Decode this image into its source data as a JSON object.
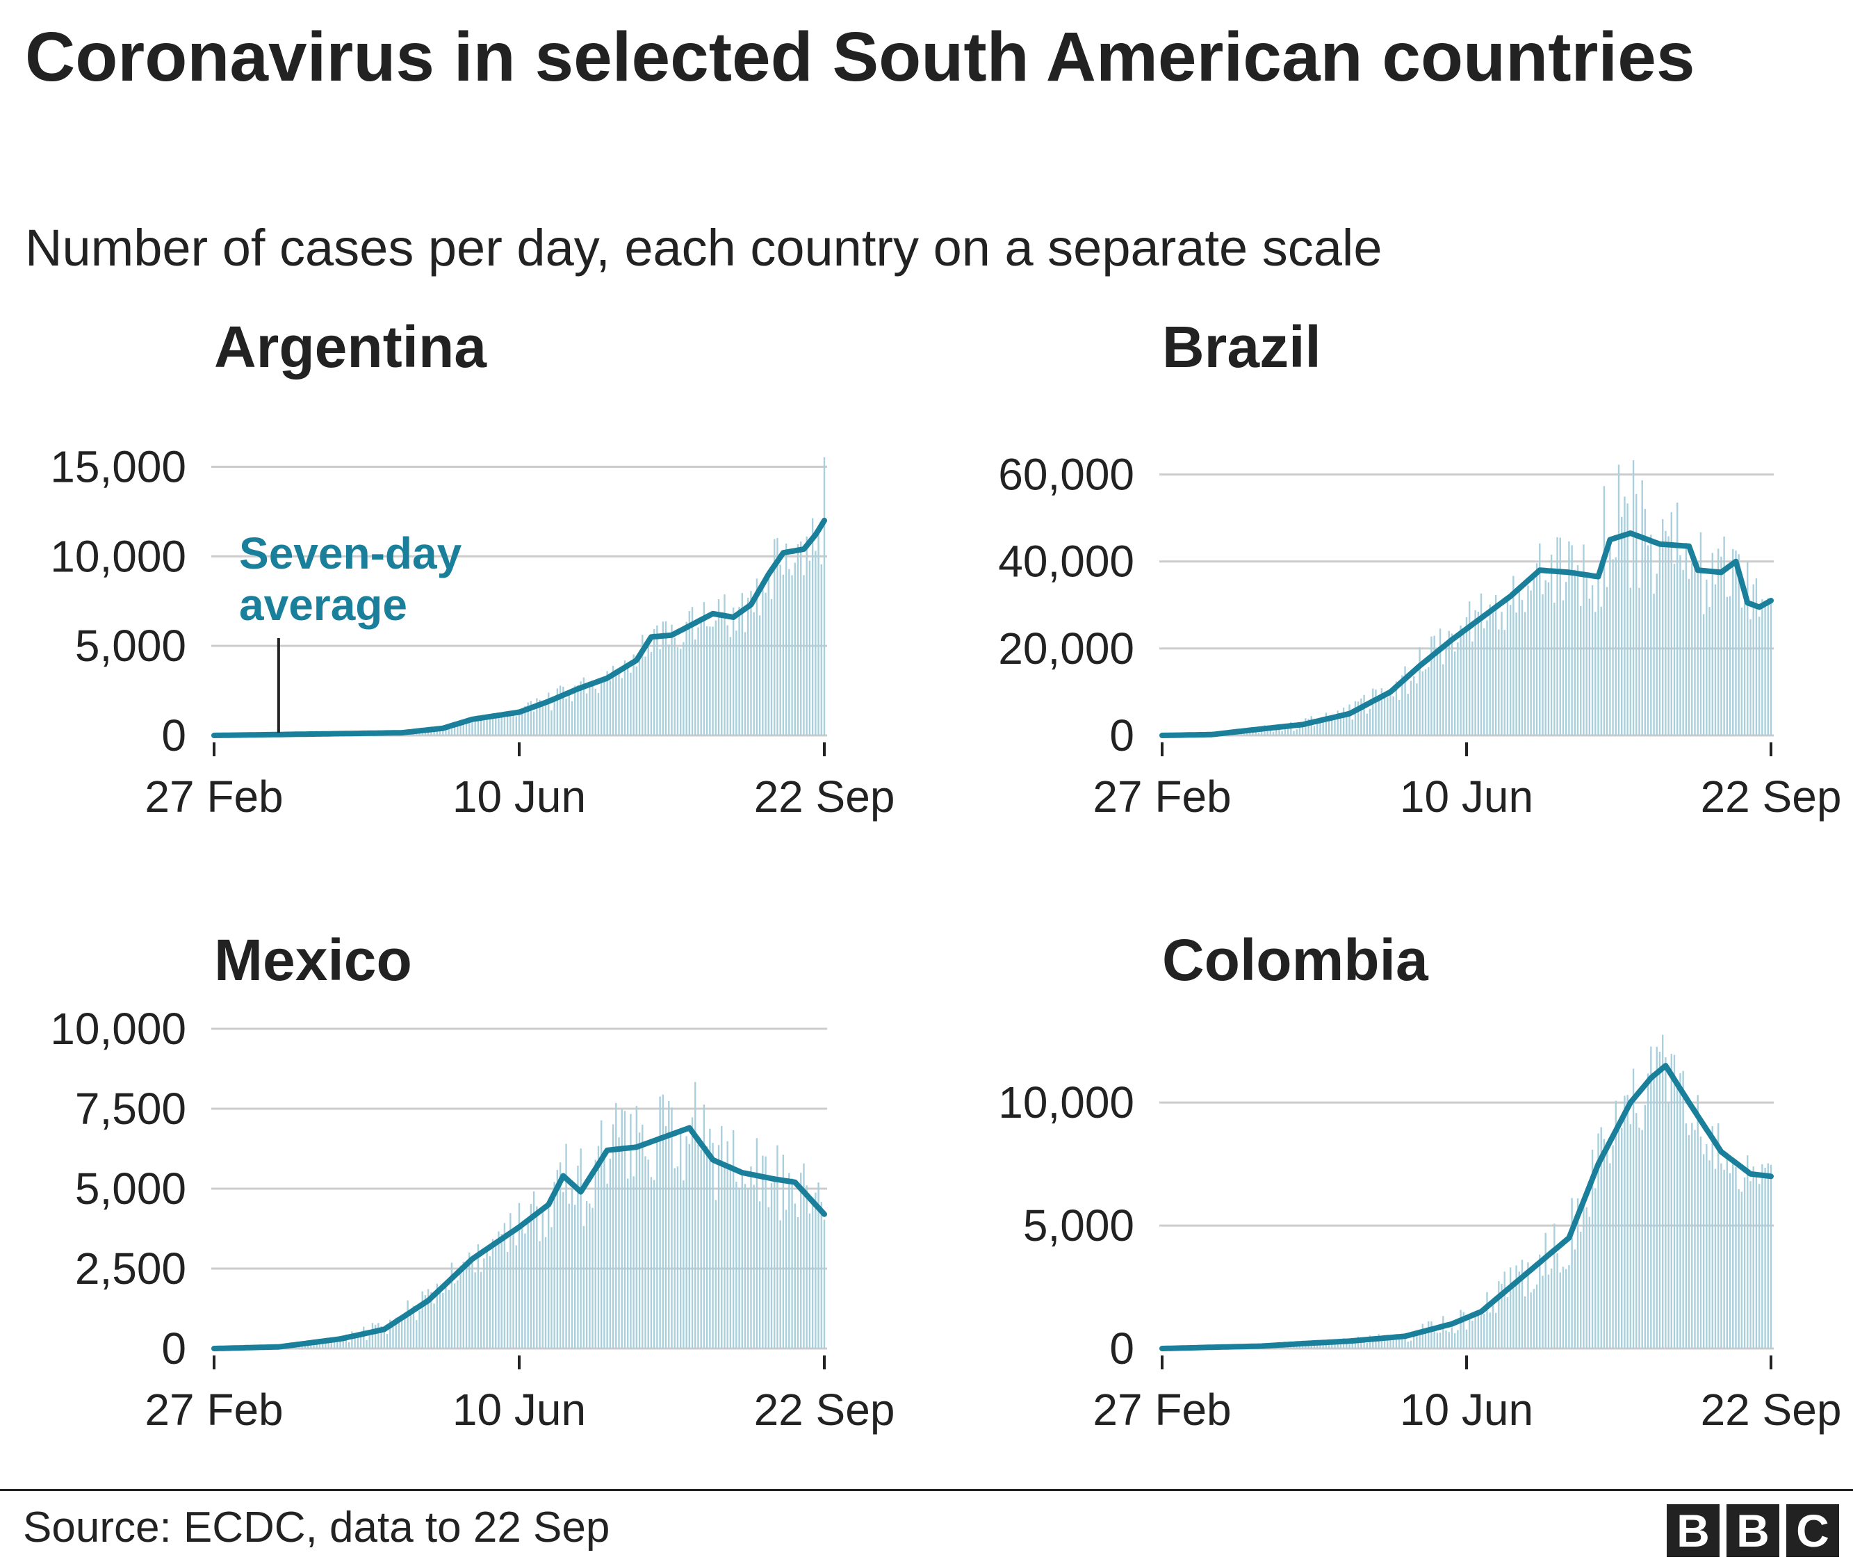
{
  "title": "Coronavirus in selected South American countries",
  "subtitle": "Number of cases per day, each country on a separate scale",
  "source": "Source: ECDC, data to 22 Sep",
  "logo": [
    "B",
    "B",
    "C"
  ],
  "colors": {
    "line": "#1a7f9b",
    "bars": "#a9cfdc",
    "grid": "#cccccc",
    "text": "#222222"
  },
  "chart_data": [
    {
      "type": "bar+line",
      "title": "Argentina",
      "x_range": [
        "27 Feb",
        "22 Sep"
      ],
      "x_ticks": [
        "27 Feb",
        "10 Jun",
        "22 Sep"
      ],
      "ylim": [
        0,
        17000
      ],
      "yticks": [
        0,
        5000,
        10000,
        15000
      ],
      "ytick_labels": [
        "0",
        "5,000",
        "10,000",
        "15,000"
      ],
      "annotation": {
        "text": [
          "Seven-day",
          "average"
        ],
        "date": "20 Mar",
        "y": 0
      },
      "series": [
        {
          "name": "Seven-day average",
          "kind": "line",
          "points": [
            [
              "27 Feb",
              0
            ],
            [
              "20 Mar",
              50
            ],
            [
              "10 Apr",
              100
            ],
            [
              "1 May",
              150
            ],
            [
              "15 May",
              400
            ],
            [
              "25 May",
              900
            ],
            [
              "10 Jun",
              1300
            ],
            [
              "20 Jun",
              1900
            ],
            [
              "30 Jun",
              2600
            ],
            [
              "10 Jul",
              3200
            ],
            [
              "20 Jul",
              4200
            ],
            [
              "25 Jul",
              5500
            ],
            [
              "1 Aug",
              5600
            ],
            [
              "8 Aug",
              6200
            ],
            [
              "15 Aug",
              6800
            ],
            [
              "22 Aug",
              6600
            ],
            [
              "28 Aug",
              7300
            ],
            [
              "3 Sep",
              9000
            ],
            [
              "8 Sep",
              10200
            ],
            [
              "15 Sep",
              10400
            ],
            [
              "19 Sep",
              11200
            ],
            [
              "22 Sep",
              12000
            ]
          ]
        },
        {
          "name": "Daily cases",
          "kind": "bar",
          "points": [
            [
              "27 Feb",
              0
            ],
            [
              "20 Mar",
              100
            ],
            [
              "10 Apr",
              150
            ],
            [
              "1 May",
              200
            ],
            [
              "15 May",
              600
            ],
            [
              "25 May",
              1100
            ],
            [
              "10 Jun",
              1600
            ],
            [
              "20 Jun",
              2600
            ],
            [
              "30 Jun",
              3300
            ],
            [
              "10 Jul",
              4000
            ],
            [
              "20 Jul",
              5300
            ],
            [
              "25 Jul",
              6500
            ],
            [
              "1 Aug",
              6900
            ],
            [
              "8 Aug",
              7300
            ],
            [
              "15 Aug",
              8000
            ],
            [
              "22 Aug",
              8200
            ],
            [
              "28 Aug",
              9000
            ],
            [
              "3 Sep",
              11000
            ],
            [
              "8 Sep",
              11800
            ],
            [
              "15 Sep",
              12300
            ],
            [
              "19 Sep",
              12800
            ],
            [
              "22 Sep",
              17200
            ]
          ]
        }
      ]
    },
    {
      "type": "bar+line",
      "title": "Brazil",
      "x_range": [
        "27 Feb",
        "22 Sep"
      ],
      "x_ticks": [
        "27 Feb",
        "10 Jun",
        "22 Sep"
      ],
      "ylim": [
        0,
        70000
      ],
      "yticks": [
        0,
        20000,
        40000,
        60000
      ],
      "ytick_labels": [
        "0",
        "20,000",
        "40,000",
        "60,000"
      ],
      "series": [
        {
          "name": "Seven-day average",
          "kind": "line",
          "points": [
            [
              "27 Feb",
              0
            ],
            [
              "15 Mar",
              200
            ],
            [
              "1 Apr",
              1500
            ],
            [
              "15 Apr",
              2500
            ],
            [
              "1 May",
              5000
            ],
            [
              "15 May",
              10000
            ],
            [
              "25 May",
              16000
            ],
            [
              "5 Jun",
              22000
            ],
            [
              "15 Jun",
              27000
            ],
            [
              "25 Jun",
              32000
            ],
            [
              "5 Jul",
              38000
            ],
            [
              "15 Jul",
              37500
            ],
            [
              "25 Jul",
              36500
            ],
            [
              "29 Jul",
              45000
            ],
            [
              "5 Aug",
              46500
            ],
            [
              "15 Aug",
              44000
            ],
            [
              "25 Aug",
              43500
            ],
            [
              "28 Aug",
              38000
            ],
            [
              "5 Sep",
              37500
            ],
            [
              "10 Sep",
              40000
            ],
            [
              "14 Sep",
              30500
            ],
            [
              "18 Sep",
              29500
            ],
            [
              "22 Sep",
              31000
            ]
          ]
        },
        {
          "name": "Daily cases",
          "kind": "bar",
          "points": [
            [
              "27 Feb",
              0
            ],
            [
              "15 Mar",
              300
            ],
            [
              "1 Apr",
              2500
            ],
            [
              "15 Apr",
              4000
            ],
            [
              "1 May",
              7500
            ],
            [
              "15 May",
              14000
            ],
            [
              "25 May",
              21000
            ],
            [
              "5 Jun",
              28000
            ],
            [
              "15 Jun",
              34000
            ],
            [
              "25 Jun",
              40000
            ],
            [
              "5 Jul",
              46000
            ],
            [
              "15 Jul",
              48000
            ],
            [
              "25 Jul",
              52000
            ],
            [
              "29 Jul",
              68000
            ],
            [
              "5 Aug",
              69000
            ],
            [
              "15 Aug",
              60000
            ],
            [
              "25 Aug",
              54000
            ],
            [
              "28 Aug",
              50000
            ],
            [
              "5 Sep",
              46000
            ],
            [
              "10 Sep",
              50000
            ],
            [
              "14 Sep",
              42000
            ],
            [
              "18 Sep",
              36000
            ],
            [
              "22 Sep",
              34000
            ]
          ]
        }
      ]
    },
    {
      "type": "bar+line",
      "title": "Mexico",
      "x_range": [
        "27 Feb",
        "22 Sep"
      ],
      "x_ticks": [
        "27 Feb",
        "10 Jun",
        "22 Sep"
      ],
      "ylim": [
        0,
        10000
      ],
      "yticks": [
        0,
        2500,
        5000,
        7500,
        10000
      ],
      "ytick_labels": [
        "0",
        "2,500",
        "5,000",
        "7,500",
        "10,000"
      ],
      "series": [
        {
          "name": "Seven-day average",
          "kind": "line",
          "points": [
            [
              "27 Feb",
              0
            ],
            [
              "20 Mar",
              50
            ],
            [
              "10 Apr",
              300
            ],
            [
              "25 Apr",
              600
            ],
            [
              "10 May",
              1500
            ],
            [
              "25 May",
              2800
            ],
            [
              "10 Jun",
              3800
            ],
            [
              "20 Jun",
              4500
            ],
            [
              "25 Jun",
              5400
            ],
            [
              "1 Jul",
              4900
            ],
            [
              "10 Jul",
              6200
            ],
            [
              "20 Jul",
              6300
            ],
            [
              "1 Aug",
              6700
            ],
            [
              "7 Aug",
              6900
            ],
            [
              "15 Aug",
              5900
            ],
            [
              "25 Aug",
              5500
            ],
            [
              "5 Sep",
              5300
            ],
            [
              "12 Sep",
              5200
            ],
            [
              "22 Sep",
              4200
            ]
          ]
        },
        {
          "name": "Daily cases",
          "kind": "bar",
          "points": [
            [
              "27 Feb",
              0
            ],
            [
              "20 Mar",
              80
            ],
            [
              "10 Apr",
              450
            ],
            [
              "25 Apr",
              1000
            ],
            [
              "10 May",
              2100
            ],
            [
              "25 May",
              3400
            ],
            [
              "10 Jun",
              4700
            ],
            [
              "20 Jun",
              5700
            ],
            [
              "25 Jun",
              6500
            ],
            [
              "1 Jul",
              6900
            ],
            [
              "10 Jul",
              7800
            ],
            [
              "20 Jul",
              8000
            ],
            [
              "1 Aug",
              8300
            ],
            [
              "7 Aug",
              9500
            ],
            [
              "15 Aug",
              7300
            ],
            [
              "25 Aug",
              6900
            ],
            [
              "5 Sep",
              6800
            ],
            [
              "12 Sep",
              6500
            ],
            [
              "22 Sep",
              5200
            ]
          ]
        }
      ]
    },
    {
      "type": "bar+line",
      "title": "Colombia",
      "x_range": [
        "27 Feb",
        "22 Sep"
      ],
      "x_ticks": [
        "27 Feb",
        "10 Jun",
        "22 Sep"
      ],
      "ylim": [
        0,
        13000
      ],
      "yticks": [
        0,
        5000,
        10000
      ],
      "ytick_labels": [
        "0",
        "5,000",
        "10,000"
      ],
      "series": [
        {
          "name": "Seven-day average",
          "kind": "line",
          "points": [
            [
              "27 Feb",
              0
            ],
            [
              "1 Apr",
              100
            ],
            [
              "15 Apr",
              200
            ],
            [
              "1 May",
              300
            ],
            [
              "20 May",
              500
            ],
            [
              "5 Jun",
              1000
            ],
            [
              "15 Jun",
              1500
            ],
            [
              "25 Jun",
              2500
            ],
            [
              "5 Jul",
              3500
            ],
            [
              "15 Jul",
              4500
            ],
            [
              "25 Jul",
              7500
            ],
            [
              "5 Aug",
              10000
            ],
            [
              "12 Aug",
              11000
            ],
            [
              "17 Aug",
              11500
            ],
            [
              "25 Aug",
              10000
            ],
            [
              "5 Sep",
              8000
            ],
            [
              "15 Sep",
              7100
            ],
            [
              "22 Sep",
              7000
            ]
          ]
        },
        {
          "name": "Daily cases",
          "kind": "bar",
          "points": [
            [
              "27 Feb",
              0
            ],
            [
              "1 Apr",
              150
            ],
            [
              "15 Apr",
              300
            ],
            [
              "1 May",
              450
            ],
            [
              "20 May",
              800
            ],
            [
              "5 Jun",
              1500
            ],
            [
              "15 Jun",
              2200
            ],
            [
              "25 Jun",
              3500
            ],
            [
              "5 Jul",
              4800
            ],
            [
              "15 Jul",
              6000
            ],
            [
              "25 Jul",
              9500
            ],
            [
              "5 Aug",
              12000
            ],
            [
              "12 Aug",
              12800
            ],
            [
              "17 Aug",
              13000
            ],
            [
              "25 Aug",
              11500
            ],
            [
              "5 Sep",
              9500
            ],
            [
              "15 Sep",
              8200
            ],
            [
              "22 Sep",
              7800
            ]
          ]
        }
      ]
    }
  ]
}
